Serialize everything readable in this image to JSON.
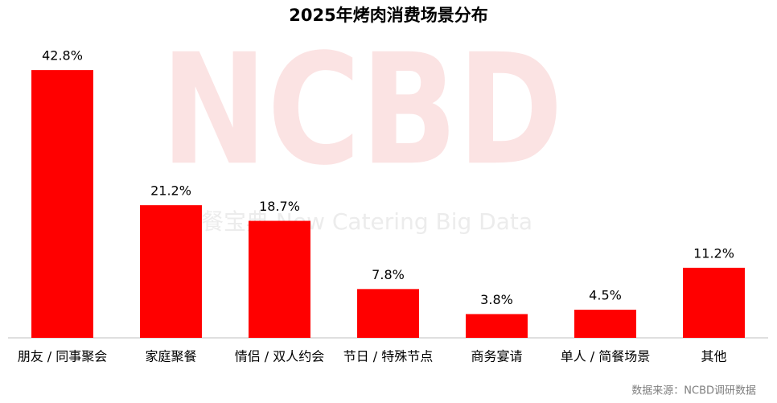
{
  "chart_data": {
    "type": "bar",
    "title": "2025年烤肉消费场景分布",
    "categories": [
      "朋友 / 同事聚会",
      "家庭聚餐",
      "情侣 / 双人约会",
      "节日 / 特殊节点",
      "商务宴请",
      "单人 / 简餐场景",
      "其他"
    ],
    "values": [
      42.8,
      21.2,
      18.7,
      7.8,
      3.8,
      4.5,
      11.2
    ],
    "value_labels": [
      "42.8%",
      "21.2%",
      "18.7%",
      "7.8%",
      "3.8%",
      "4.5%",
      "11.2%"
    ],
    "color": "#ff0000",
    "ylim": [
      0,
      45
    ],
    "watermark": [
      "NCBD",
      "餐宝典 New Catering Big Data"
    ],
    "source": "数据来源：NCBD调研数据"
  }
}
